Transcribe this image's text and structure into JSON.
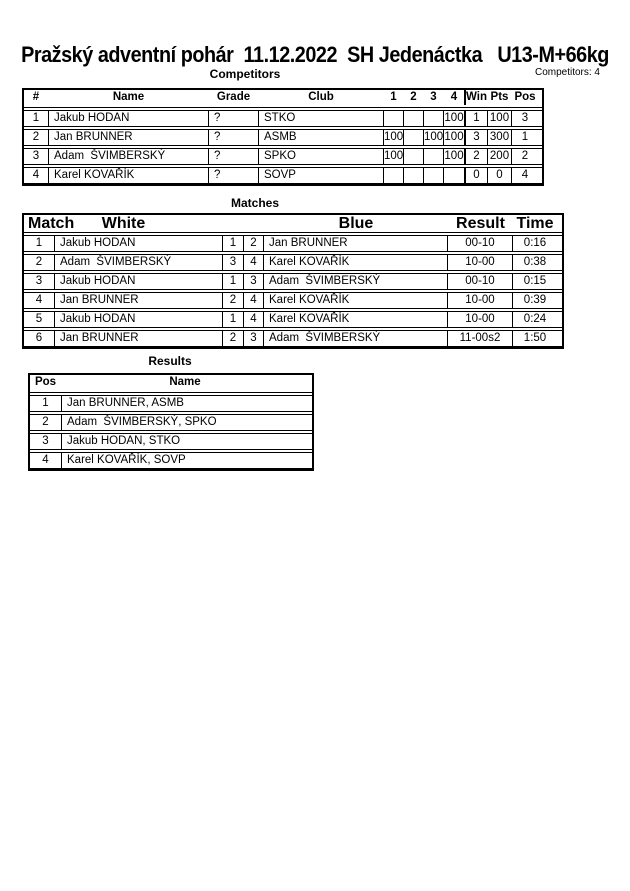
{
  "page": {
    "title": "Pražský adventní pohár  11.12.2022  SH Jedenáctka   U13-M+66kg",
    "competitors_count_label": "Competitors: 4"
  },
  "competitors": {
    "heading": "Competitors",
    "headers": {
      "num": "#",
      "name": "Name",
      "grade": "Grade",
      "club": "Club",
      "c1": "1",
      "c2": "2",
      "c3": "3",
      "c4": "4",
      "wins": "Wins",
      "pts": "Pts",
      "pos": "Pos"
    },
    "rows": [
      {
        "num": "1",
        "name": "Jakub HODAN",
        "grade": "?",
        "club": "STKO",
        "c1": "",
        "c2": "",
        "c3": "",
        "c4": "100",
        "wins": "1",
        "pts": "100",
        "pos": "3"
      },
      {
        "num": "2",
        "name": "Jan BRUNNER",
        "grade": "?",
        "club": "ASMB",
        "c1": "100",
        "c2": "",
        "c3": "100",
        "c4": "100",
        "wins": "3",
        "pts": "300",
        "pos": "1"
      },
      {
        "num": "3",
        "name": "Adam  ŠVIMBERSKÝ",
        "grade": "?",
        "club": "SPKO",
        "c1": "100",
        "c2": "",
        "c3": "",
        "c4": "100",
        "wins": "2",
        "pts": "200",
        "pos": "2"
      },
      {
        "num": "4",
        "name": "Karel KOVAŘÍK",
        "grade": "?",
        "club": "SOVP",
        "c1": "",
        "c2": "",
        "c3": "",
        "c4": "",
        "wins": "0",
        "pts": "0",
        "pos": "4"
      }
    ]
  },
  "matches": {
    "heading": "Matches",
    "headers": {
      "match": "Match",
      "white": "White",
      "blue": "Blue",
      "result": "Result",
      "time": "Time"
    },
    "rows": [
      {
        "match": "1",
        "white": "Jakub HODAN",
        "wnum": "1",
        "bnum": "2",
        "blue": "Jan BRUNNER",
        "result": "00-10",
        "time": "0:16"
      },
      {
        "match": "2",
        "white": "Adam  ŠVIMBERSKÝ",
        "wnum": "3",
        "bnum": "4",
        "blue": "Karel KOVAŘÍK",
        "result": "10-00",
        "time": "0:38"
      },
      {
        "match": "3",
        "white": "Jakub HODAN",
        "wnum": "1",
        "bnum": "3",
        "blue": "Adam  ŠVIMBERSKÝ",
        "result": "00-10",
        "time": "0:15"
      },
      {
        "match": "4",
        "white": "Jan BRUNNER",
        "wnum": "2",
        "bnum": "4",
        "blue": "Karel KOVAŘÍK",
        "result": "10-00",
        "time": "0:39"
      },
      {
        "match": "5",
        "white": "Jakub HODAN",
        "wnum": "1",
        "bnum": "4",
        "blue": "Karel KOVAŘÍK",
        "result": "10-00",
        "time": "0:24"
      },
      {
        "match": "6",
        "white": "Jan BRUNNER",
        "wnum": "2",
        "bnum": "3",
        "blue": "Adam  ŠVIMBERSKÝ",
        "result": "11-00s2",
        "time": "1:50"
      }
    ]
  },
  "results": {
    "heading": "Results",
    "headers": {
      "pos": "Pos",
      "name": "Name"
    },
    "rows": [
      {
        "pos": "1",
        "name": "Jan BRUNNER, ASMB"
      },
      {
        "pos": "2",
        "name": "Adam  ŠVIMBERSKÝ, SPKO"
      },
      {
        "pos": "3",
        "name": "Jakub HODAN, STKO"
      },
      {
        "pos": "4",
        "name": "Karel KOVAŘÍK, SOVP"
      }
    ]
  }
}
